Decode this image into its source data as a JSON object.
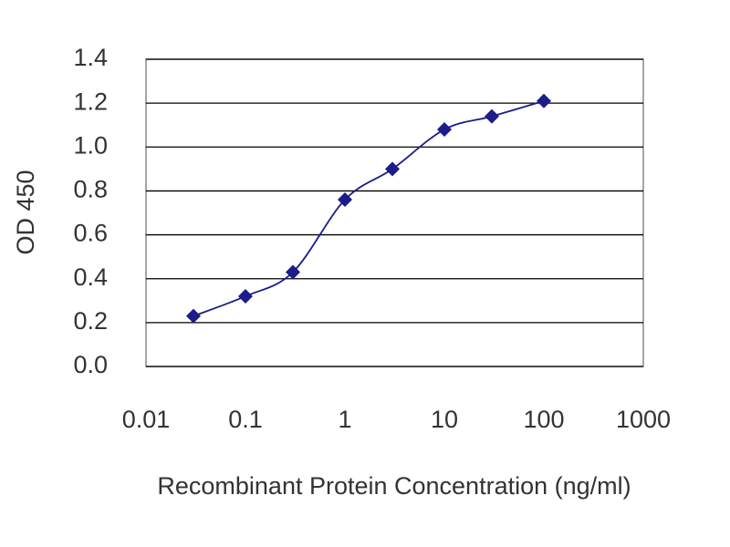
{
  "chart_data": {
    "type": "line",
    "x_label": "Recombinant Protein Concentration (ng/ml)",
    "y_label": "OD 450",
    "x": [
      0.03,
      0.1,
      0.3,
      1,
      3,
      10,
      30,
      100
    ],
    "series": [
      {
        "color": "#1c1c8a",
        "values": [
          0.23,
          0.32,
          0.43,
          0.76,
          0.9,
          1.08,
          1.14,
          1.21
        ]
      }
    ],
    "xlim": [
      0.01,
      1000
    ],
    "xticks": [
      0.01,
      0.1,
      1,
      10,
      100,
      1000
    ],
    "x_log": true,
    "ylim": [
      0,
      1.4
    ],
    "yticks": [
      {
        "value": 0,
        "label": "0.0"
      },
      0.2,
      0.4,
      0.6,
      0.8,
      {
        "value": 1,
        "label": "1.0"
      },
      1.2,
      1.4
    ],
    "grid": true
  }
}
